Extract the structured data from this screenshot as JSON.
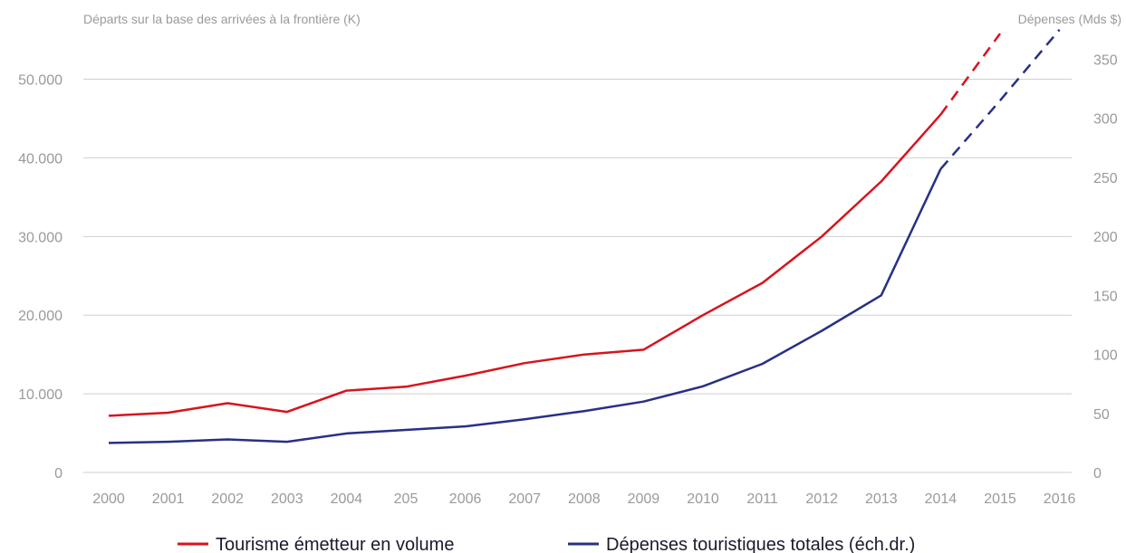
{
  "chart_data": {
    "type": "line",
    "ylabel_left": "Départs sur la base des arrivées à la frontière (K)",
    "ylabel_right": "Dépenses (Mds $)",
    "categories": [
      "2000",
      "2001",
      "2002",
      "2003",
      "2004",
      "205",
      "2006",
      "2007",
      "2008",
      "2009",
      "2010",
      "2011",
      "2012",
      "2013",
      "2014",
      "2015",
      "2016"
    ],
    "yticks_left": [
      "0",
      "10.000",
      "20.000",
      "30.000",
      "40.000",
      "50.000"
    ],
    "yticks_left_values": [
      0,
      10000,
      20000,
      30000,
      40000,
      50000
    ],
    "yticks_right": [
      "0",
      "50",
      "100",
      "150",
      "200",
      "250",
      "300",
      "350"
    ],
    "yticks_right_values": [
      0,
      50,
      100,
      150,
      200,
      250,
      300,
      350
    ],
    "ylim_left": [
      0,
      55700
    ],
    "ylim_right": [
      0,
      371
    ],
    "grid": true,
    "legend_position": "bottom",
    "series": [
      {
        "name": "Tourisme émetteur en volume",
        "axis": "left",
        "color": "#d7141e",
        "values": [
          7200,
          7600,
          8800,
          7700,
          10400,
          10900,
          12300,
          13900,
          15000,
          15600,
          20000,
          24100,
          30000,
          37000,
          45500,
          55800,
          null
        ],
        "projected_from": "2014"
      },
      {
        "name": "Dépenses touristiques totales (éch.dr.)",
        "axis": "right",
        "color": "#283085",
        "values": [
          25,
          26,
          28,
          26,
          33,
          36,
          39,
          45,
          52,
          60,
          73,
          92,
          120,
          150,
          257,
          315,
          375
        ],
        "projected_from": "2014"
      }
    ]
  }
}
